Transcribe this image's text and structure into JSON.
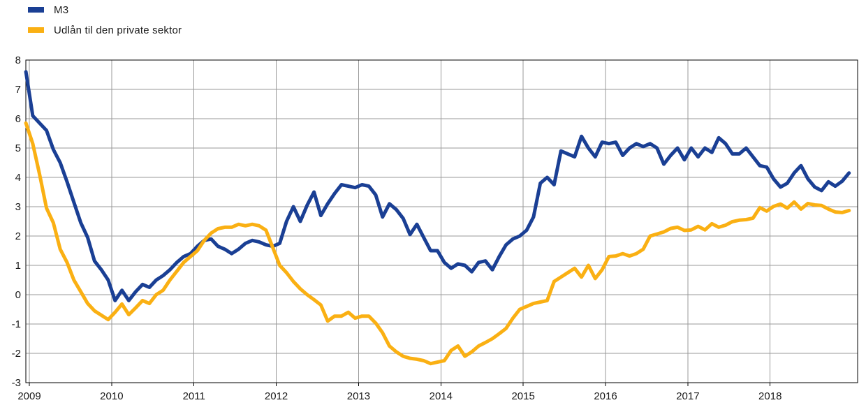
{
  "legend": {
    "items": [
      {
        "label": "M3",
        "color": "#1A3F94"
      },
      {
        "label": "Udlån til den private sektor",
        "color": "#FAB013"
      }
    ]
  },
  "colors": {
    "grid": "#999999",
    "axis": "#000000",
    "text": "#1a1a1a",
    "background": "#ffffff",
    "m3": "#1A3F94",
    "lending": "#FAB013"
  },
  "chart_data": {
    "type": "line",
    "title": "",
    "xlabel": "",
    "ylabel": "",
    "grid": true,
    "legend_position": "top-left",
    "ylim": [
      -3,
      8
    ],
    "y_tick_labels": [
      "8",
      "7",
      "6",
      "5",
      "4",
      "3",
      "2",
      "1",
      "0",
      "-1",
      "-2",
      "-3"
    ],
    "x_tick_labels": [
      "2009",
      "2010",
      "2011",
      "2012",
      "2013",
      "2014",
      "2015",
      "2016",
      "2017",
      "2018"
    ],
    "x_first_tick_year": 2009,
    "x_start_decimal_year": 2008.9583,
    "x_step_decimal_year": 0.0833333,
    "series": [
      {
        "name": "M3",
        "color": "#1A3F94",
        "values": [
          7.6,
          6.1,
          5.85,
          5.6,
          4.95,
          4.5,
          3.85,
          3.15,
          2.45,
          1.95,
          1.15,
          0.85,
          0.5,
          -0.2,
          0.15,
          -0.2,
          0.1,
          0.35,
          0.25,
          0.5,
          0.65,
          0.85,
          1.1,
          1.3,
          1.4,
          1.65,
          1.85,
          1.9,
          1.65,
          1.55,
          1.4,
          1.55,
          1.75,
          1.85,
          1.8,
          1.7,
          1.65,
          1.75,
          2.5,
          3.0,
          2.5,
          3.05,
          3.5,
          2.7,
          3.1,
          3.45,
          3.75,
          3.7,
          3.65,
          3.75,
          3.7,
          3.4,
          2.65,
          3.1,
          2.9,
          2.6,
          2.05,
          2.4,
          1.95,
          1.5,
          1.5,
          1.1,
          0.9,
          1.05,
          1.0,
          0.78,
          1.1,
          1.15,
          0.85,
          1.3,
          1.7,
          1.9,
          2.0,
          2.2,
          2.65,
          3.8,
          4.0,
          3.75,
          4.9,
          4.8,
          4.7,
          5.4,
          5.0,
          4.7,
          5.2,
          5.15,
          5.2,
          4.75,
          5.0,
          5.15,
          5.05,
          5.15,
          5.0,
          4.45,
          4.75,
          5.0,
          4.6,
          5.0,
          4.7,
          5.0,
          4.85,
          5.35,
          5.15,
          4.8,
          4.8,
          5.0,
          4.7,
          4.4,
          4.35,
          3.95,
          3.67,
          3.8,
          4.15,
          4.4,
          3.95,
          3.67,
          3.55,
          3.85,
          3.7,
          3.87,
          4.15
        ]
      },
      {
        "name": "Udlån til den private sektor",
        "color": "#FAB013",
        "values": [
          5.85,
          5.15,
          4.1,
          2.95,
          2.45,
          1.55,
          1.1,
          0.5,
          0.1,
          -0.3,
          -0.55,
          -0.7,
          -0.85,
          -0.6,
          -0.32,
          -0.68,
          -0.45,
          -0.2,
          -0.3,
          0.0,
          0.15,
          0.5,
          0.8,
          1.1,
          1.3,
          1.5,
          1.85,
          2.1,
          2.25,
          2.3,
          2.3,
          2.4,
          2.35,
          2.4,
          2.35,
          2.2,
          1.6,
          1.0,
          0.75,
          0.45,
          0.2,
          0.0,
          -0.17,
          -0.35,
          -0.9,
          -0.73,
          -0.73,
          -0.6,
          -0.8,
          -0.73,
          -0.73,
          -0.97,
          -1.3,
          -1.75,
          -1.95,
          -2.1,
          -2.17,
          -2.2,
          -2.25,
          -2.35,
          -2.3,
          -2.25,
          -1.9,
          -1.75,
          -2.1,
          -1.95,
          -1.75,
          -1.63,
          -1.5,
          -1.33,
          -1.15,
          -0.8,
          -0.5,
          -0.4,
          -0.3,
          -0.25,
          -0.2,
          0.45,
          0.6,
          0.75,
          0.9,
          0.6,
          1.0,
          0.55,
          0.85,
          1.3,
          1.32,
          1.4,
          1.32,
          1.4,
          1.55,
          2.0,
          2.07,
          2.14,
          2.26,
          2.3,
          2.19,
          2.21,
          2.33,
          2.21,
          2.42,
          2.3,
          2.37,
          2.49,
          2.54,
          2.56,
          2.61,
          2.97,
          2.85,
          3.01,
          3.09,
          2.95,
          3.16,
          2.92,
          3.11,
          3.06,
          3.04,
          2.92,
          2.82,
          2.8,
          2.87
        ]
      }
    ]
  }
}
